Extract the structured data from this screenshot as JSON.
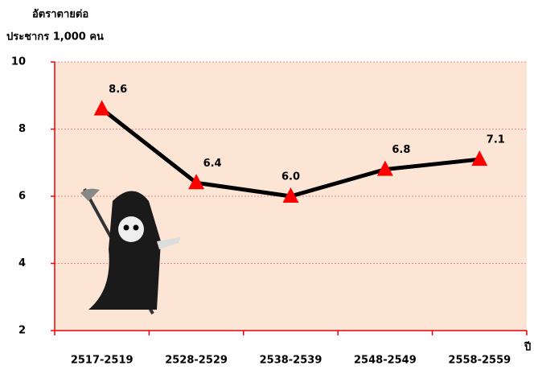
{
  "chart_data": {
    "type": "line",
    "y_label": [
      "อัตราตายต่อ",
      "ประชากร 1,000 คน"
    ],
    "x_label": "ปี",
    "categories": [
      "2517-2519",
      "2528-2529",
      "2538-2539",
      "2548-2549",
      "2558-2559"
    ],
    "values": [
      8.6,
      6.4,
      6.0,
      6.8,
      7.1
    ],
    "value_labels": [
      "8.6",
      "6.4",
      "6.0",
      "6.8",
      "7.1"
    ],
    "color": "#000000",
    "marker_color": "#ff0000",
    "ylim": [
      2,
      10
    ],
    "yticks": [
      2,
      4,
      6,
      8,
      10
    ],
    "grid": true
  }
}
